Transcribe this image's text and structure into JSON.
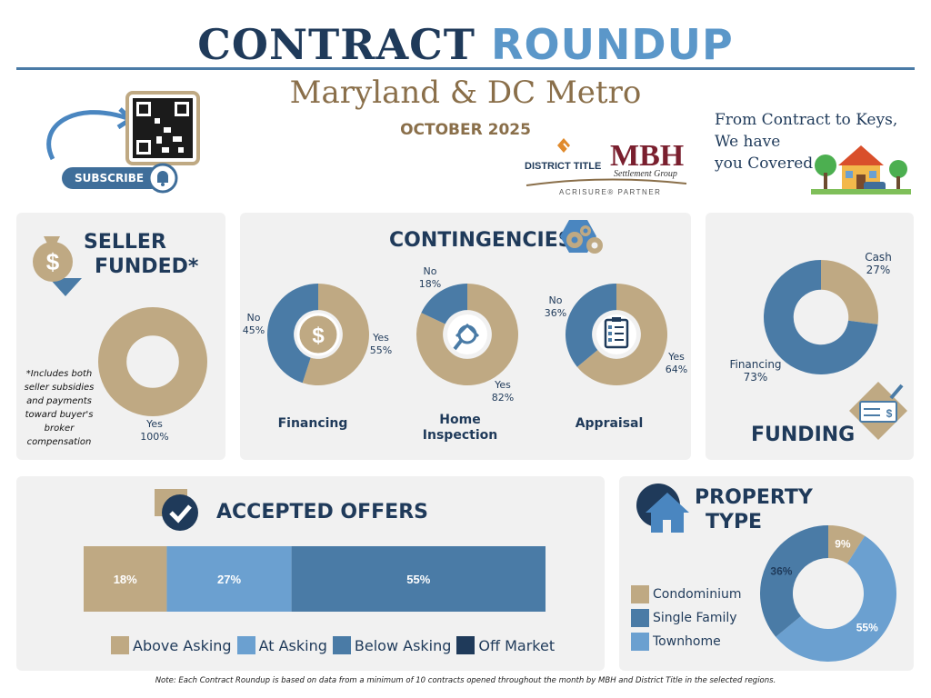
{
  "header": {
    "title_part1": "CONTRACT",
    "title_part2": "ROUNDUP",
    "region": "Maryland & DC Metro",
    "month": "OCTOBER 2025",
    "tagline": [
      "From Contract to Keys,",
      "We have",
      "you Covered"
    ],
    "subscribe_label": "SUBSCRIBE",
    "logo_district": "DISTRICT TITLE",
    "logo_mbh": "MBH",
    "logo_mbh_sub": "Settlement Group",
    "logo_partner": "ACRISURE® PARTNER"
  },
  "colors": {
    "tan": "#bfa983",
    "navy": "#1f3a5a",
    "blue": "#4a7ba6",
    "light_blue": "#6ba0d0",
    "panel": "#f1f1f1"
  },
  "seller": {
    "heading_line1": "SELLER",
    "heading_line2": "FUNDED*",
    "disclaimer": [
      "*Includes both",
      "seller subsidies",
      "and payments",
      "toward buyer's",
      "broker",
      "compensation"
    ],
    "yes_label": "Yes",
    "yes_pct": "100%"
  },
  "contingencies": {
    "heading": "CONTINGENCIES",
    "financing_caption": "Financing",
    "inspection_caption": [
      "Home",
      "Inspection"
    ],
    "appraisal_caption": "Appraisal"
  },
  "funding": {
    "heading": "FUNDING",
    "cash_label": "Cash",
    "cash_pct": "27%",
    "financing_label": "Financing",
    "financing_pct": "73%"
  },
  "offers": {
    "heading": "ACCEPTED OFFERS",
    "legend": [
      "Above Asking",
      "At Asking",
      "Below Asking",
      "Off Market"
    ]
  },
  "property": {
    "heading_line1": "PROPERTY",
    "heading_line2": "TYPE",
    "legend": [
      "Condominium",
      "Single Family",
      "Townhome"
    ]
  },
  "footer_note": "Note: Each Contract Roundup is based on data from a minimum of 10 contracts opened throughout the month by MBH and District Title in the selected regions.",
  "chart_data": [
    {
      "type": "pie",
      "title": "SELLER FUNDED*",
      "categories": [
        "Yes"
      ],
      "values": [
        100
      ],
      "labels": [
        "Yes 100%"
      ]
    },
    {
      "type": "pie",
      "title": "Financing",
      "categories": [
        "Yes",
        "No"
      ],
      "values": [
        55,
        45
      ],
      "labels": [
        "Yes 55%",
        "No 45%"
      ]
    },
    {
      "type": "pie",
      "title": "Home Inspection",
      "categories": [
        "Yes",
        "No"
      ],
      "values": [
        82,
        18
      ],
      "labels": [
        "Yes 82%",
        "No 18%"
      ]
    },
    {
      "type": "pie",
      "title": "Appraisal",
      "categories": [
        "Yes",
        "No"
      ],
      "values": [
        64,
        36
      ],
      "labels": [
        "Yes 64%",
        "No 36%"
      ]
    },
    {
      "type": "pie",
      "title": "FUNDING",
      "categories": [
        "Cash",
        "Financing"
      ],
      "values": [
        27,
        73
      ],
      "labels": [
        "Cash 27%",
        "Financing 73%"
      ]
    },
    {
      "type": "bar",
      "title": "ACCEPTED OFFERS",
      "categories": [
        "Above Asking",
        "At Asking",
        "Below Asking",
        "Off Market"
      ],
      "values": [
        18,
        27,
        55,
        0
      ],
      "labels": [
        "18%",
        "27%",
        "55%",
        ""
      ],
      "stacked": true,
      "legend": "bottom"
    },
    {
      "type": "pie",
      "title": "PROPERTY TYPE",
      "categories": [
        "Condominium",
        "Townhome",
        "Single Family"
      ],
      "values": [
        9,
        55,
        36
      ],
      "labels": [
        "9%",
        "55%",
        "36%"
      ],
      "legend": "left"
    }
  ]
}
